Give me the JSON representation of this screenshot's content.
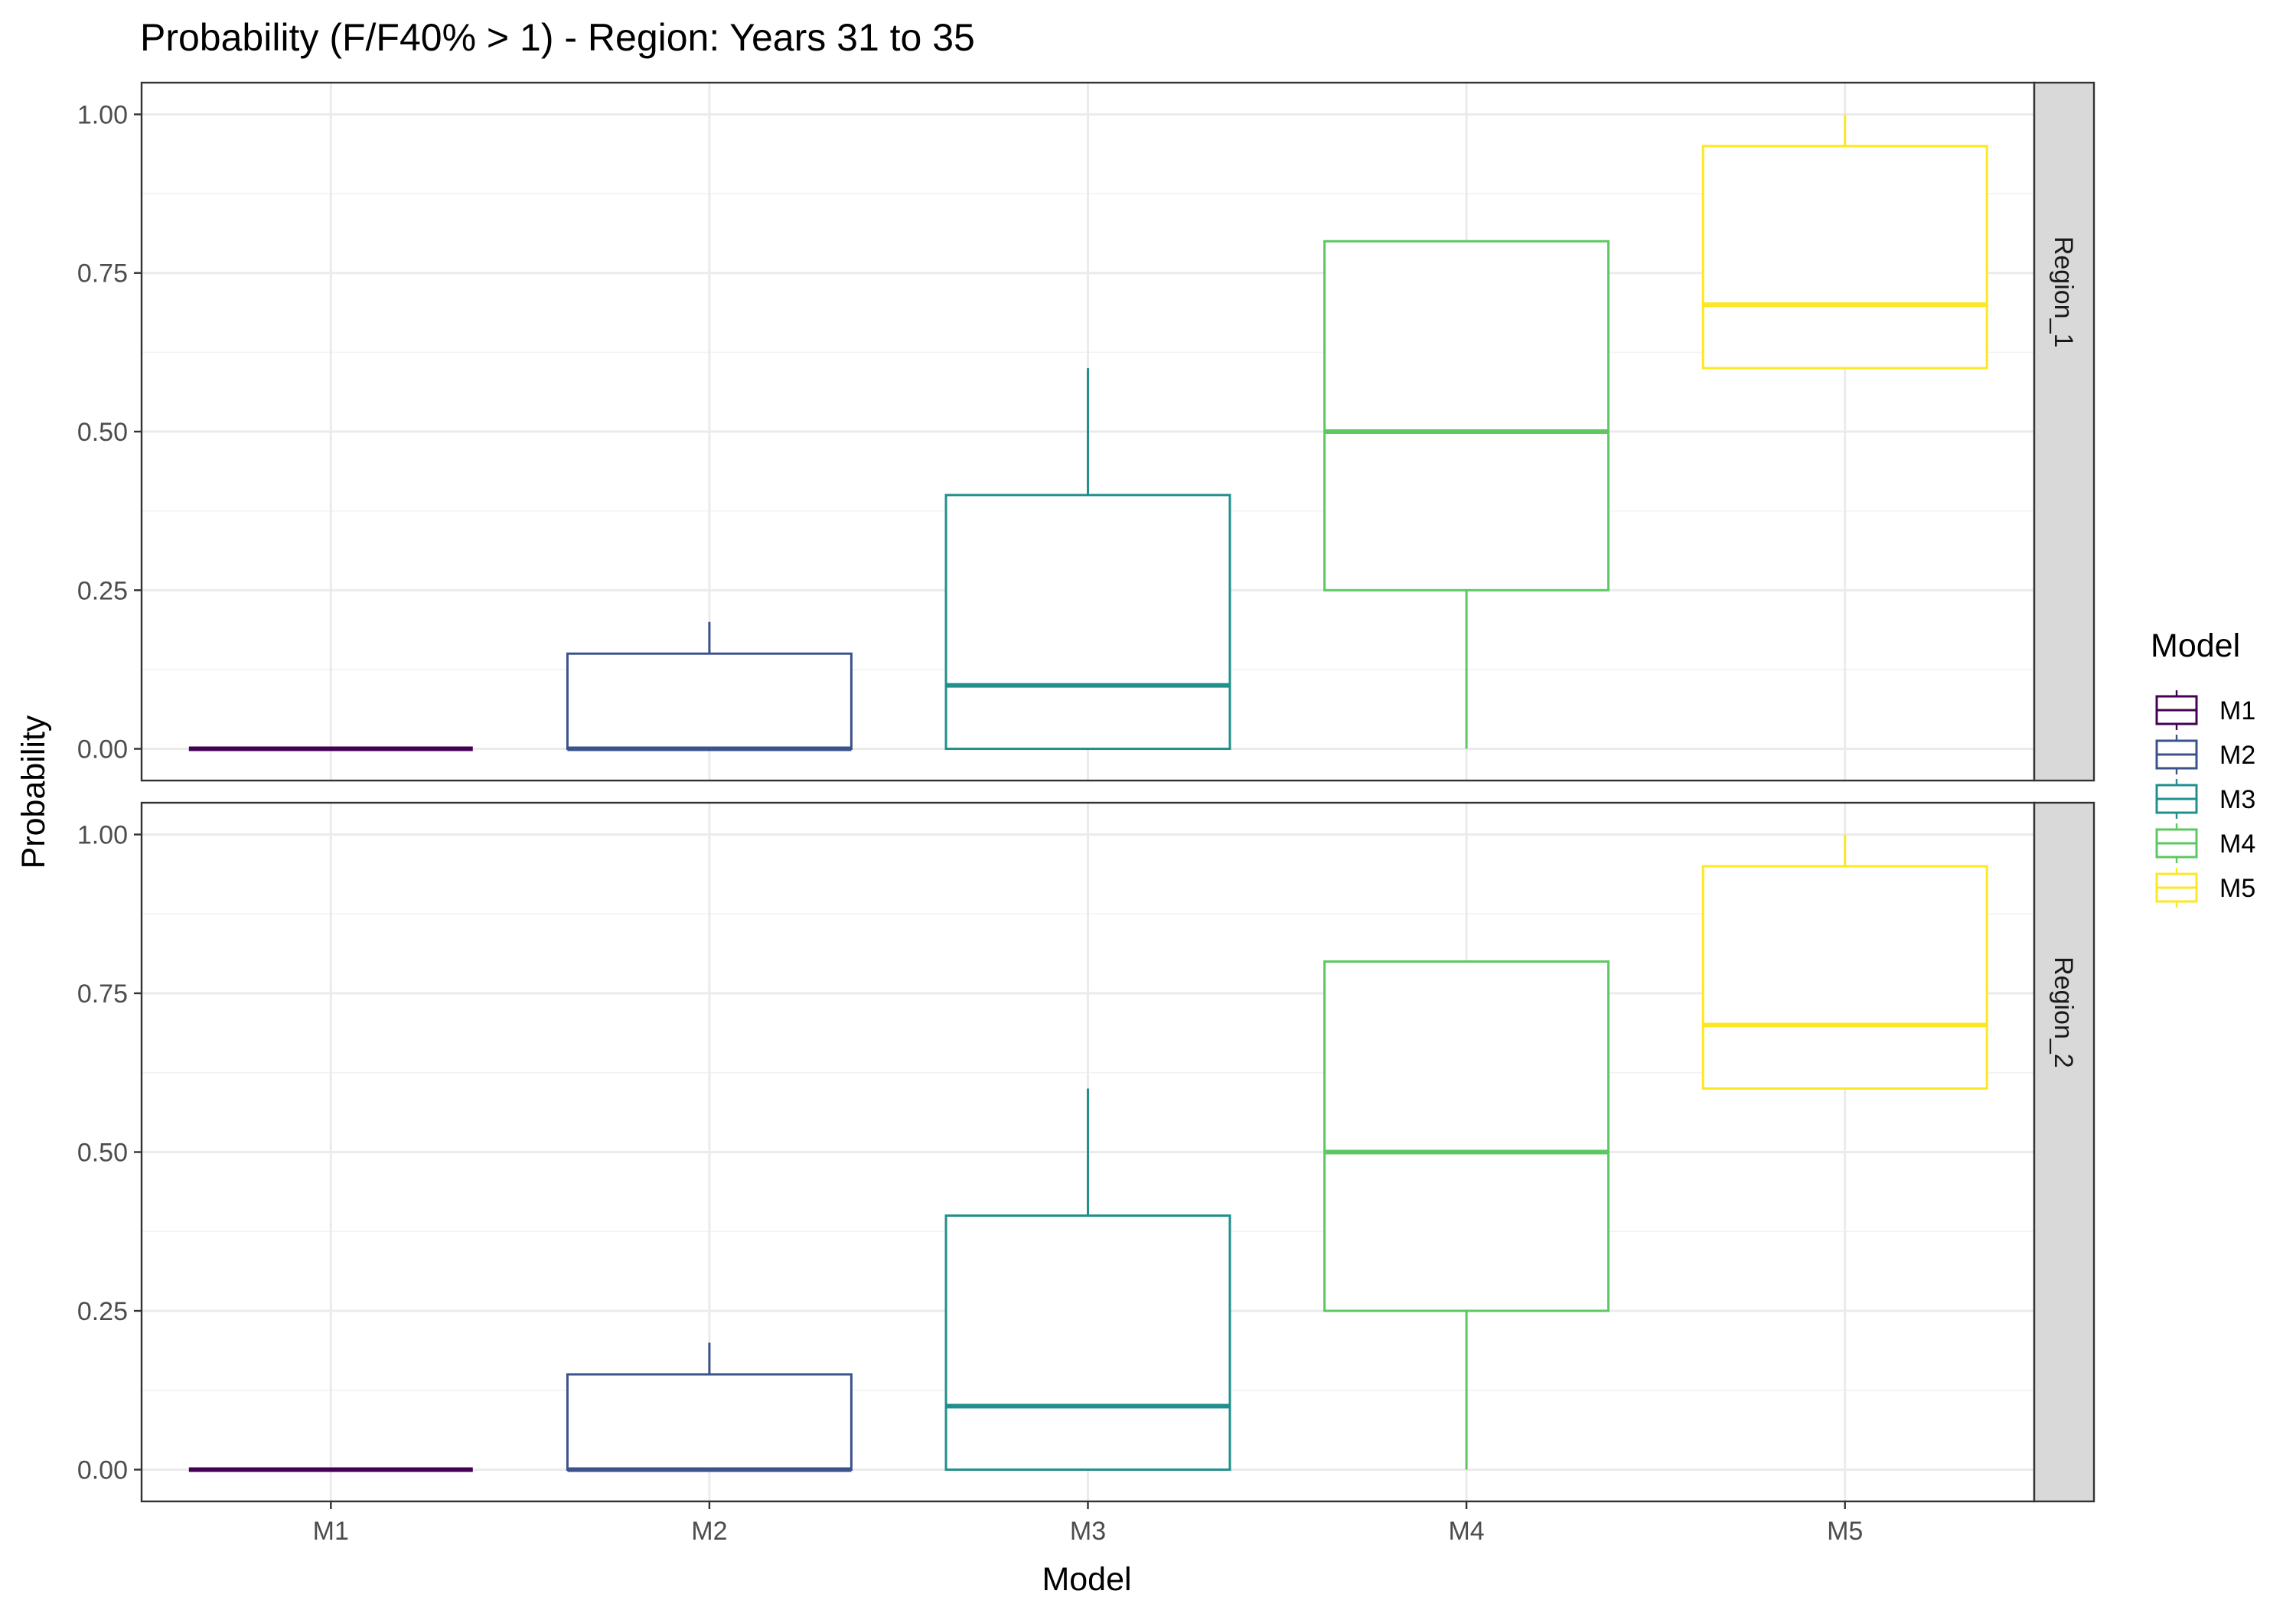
{
  "chart_data": {
    "type": "boxplot",
    "title": "Probability (F/F40% > 1) - Region: Years 31 to 35",
    "xlabel": "Model",
    "ylabel": "Probability",
    "categories": [
      "M1",
      "M2",
      "M3",
      "M4",
      "M5"
    ],
    "ylim": [
      -0.05,
      1.05
    ],
    "yticks": [
      0.0,
      0.25,
      0.5,
      0.75,
      1.0
    ],
    "ytick_labels": [
      "0.00",
      "0.25",
      "0.50",
      "0.75",
      "1.00"
    ],
    "grid": true,
    "legend": {
      "title": "Model",
      "position": "right",
      "entries": [
        "M1",
        "M2",
        "M3",
        "M4",
        "M5"
      ]
    },
    "colors": {
      "M1": "#440154",
      "M2": "#3B528B",
      "M3": "#21908C",
      "M4": "#5DC863",
      "M5": "#FDE725"
    },
    "facets": [
      {
        "label": "Region_1",
        "boxes": [
          {
            "model": "M1",
            "min": 0.0,
            "q1": 0.0,
            "median": 0.0,
            "q3": 0.0,
            "max": 0.0
          },
          {
            "model": "M2",
            "min": 0.0,
            "q1": 0.0,
            "median": 0.0,
            "q3": 0.15,
            "max": 0.2
          },
          {
            "model": "M3",
            "min": 0.0,
            "q1": 0.0,
            "median": 0.1,
            "q3": 0.4,
            "max": 0.6
          },
          {
            "model": "M4",
            "min": 0.0,
            "q1": 0.25,
            "median": 0.5,
            "q3": 0.8,
            "max": 0.8
          },
          {
            "model": "M5",
            "min": 0.6,
            "q1": 0.6,
            "median": 0.7,
            "q3": 0.95,
            "max": 1.0
          }
        ]
      },
      {
        "label": "Region_2",
        "boxes": [
          {
            "model": "M1",
            "min": 0.0,
            "q1": 0.0,
            "median": 0.0,
            "q3": 0.0,
            "max": 0.0
          },
          {
            "model": "M2",
            "min": 0.0,
            "q1": 0.0,
            "median": 0.0,
            "q3": 0.15,
            "max": 0.2
          },
          {
            "model": "M3",
            "min": 0.0,
            "q1": 0.0,
            "median": 0.1,
            "q3": 0.4,
            "max": 0.6
          },
          {
            "model": "M4",
            "min": 0.0,
            "q1": 0.25,
            "median": 0.5,
            "q3": 0.8,
            "max": 0.8
          },
          {
            "model": "M5",
            "min": 0.6,
            "q1": 0.6,
            "median": 0.7,
            "q3": 0.95,
            "max": 1.0
          }
        ]
      }
    ]
  }
}
